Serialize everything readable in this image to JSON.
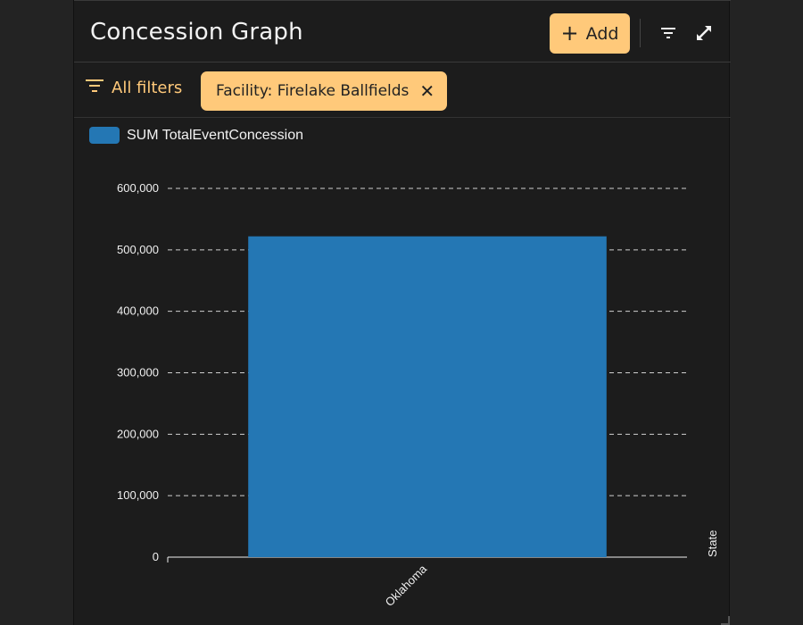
{
  "header": {
    "title": "Concession Graph",
    "add_label": "Add",
    "add_icon": "plus-icon",
    "filter_icon": "filter-lines-icon",
    "expand_icon": "expand-arrows-icon"
  },
  "filters": {
    "all_filters_label": "All filters",
    "chips": [
      {
        "label": "Facility: Firelake Ballfields"
      }
    ]
  },
  "colors": {
    "accent": "#ffc97a",
    "bar": "#2477b4",
    "background": "#1c1c1c",
    "text": "#f2f2f2"
  },
  "chart_data": {
    "type": "bar",
    "categories": [
      "Oklahoma"
    ],
    "series": [
      {
        "name": "SUM TotalEventConcession",
        "values": [
          522000
        ]
      }
    ],
    "xlabel": "State",
    "ylabel": "",
    "ylim": [
      0,
      600000
    ],
    "yticks": [
      0,
      100000,
      200000,
      300000,
      400000,
      500000,
      600000
    ],
    "ytick_labels": [
      "0",
      "100,000",
      "200,000",
      "300,000",
      "400,000",
      "500,000",
      "600,000"
    ],
    "grid": true,
    "legend_position": "top-left"
  }
}
